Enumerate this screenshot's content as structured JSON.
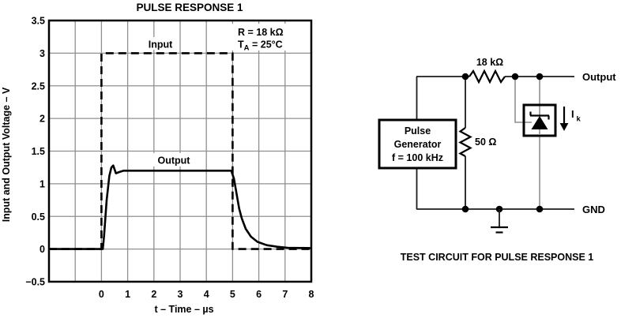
{
  "figure": {
    "chart": {
      "title": "PULSE RESPONSE 1",
      "x_axis_label": "t – Time – µs",
      "y_axis_label": "Input and Output Voltage – V",
      "condition_line1": "R = 18 kΩ",
      "condition_line2_pre": "T",
      "condition_line2_sub": "A",
      "condition_line2_post": " = 25°C",
      "input_label": "Input",
      "output_label": "Output"
    },
    "circuit": {
      "caption": "TEST CIRCUIT FOR PULSE RESPONSE 1",
      "generator_line1": "Pulse",
      "generator_line2": "Generator",
      "generator_line3": "f = 100 kHz",
      "series_resistor": "18 kΩ",
      "shunt_resistor": "50 Ω",
      "output_label": "Output",
      "gnd_label": "GND",
      "current_label_main": "I",
      "current_label_sub": "k"
    }
  },
  "chart_data": {
    "type": "line",
    "title": "PULSE RESPONSE 1",
    "xlabel": "t – Time – µs",
    "ylabel": "Input and Output Voltage – V",
    "xlim": [
      -2,
      8
    ],
    "ylim": [
      -0.5,
      3.5
    ],
    "x_ticks": [
      0,
      1,
      2,
      3,
      4,
      5,
      6,
      7,
      8
    ],
    "y_ticks": [
      3.5,
      3,
      2.5,
      2,
      1.5,
      1,
      0.5,
      0,
      -0.5
    ],
    "grid": true,
    "legend_position": "inline-annotations",
    "annotations": [
      "R = 18 kΩ",
      "TA = 25°C"
    ],
    "series": [
      {
        "name": "Input",
        "style": "dashed",
        "points": [
          [
            -2,
            0
          ],
          [
            0,
            0
          ],
          [
            0,
            3
          ],
          [
            5,
            3
          ],
          [
            5,
            0
          ],
          [
            8,
            0
          ]
        ]
      },
      {
        "name": "Output",
        "style": "solid",
        "points": [
          [
            -2,
            0
          ],
          [
            0.05,
            0
          ],
          [
            0.1,
            0.2
          ],
          [
            0.2,
            0.75
          ],
          [
            0.3,
            1.12
          ],
          [
            0.38,
            1.25
          ],
          [
            0.45,
            1.28
          ],
          [
            0.55,
            1.16
          ],
          [
            0.68,
            1.18
          ],
          [
            0.85,
            1.2
          ],
          [
            4.95,
            1.2
          ],
          [
            5.05,
            1.08
          ],
          [
            5.15,
            0.85
          ],
          [
            5.25,
            0.62
          ],
          [
            5.35,
            0.47
          ],
          [
            5.5,
            0.31
          ],
          [
            5.7,
            0.19
          ],
          [
            5.95,
            0.11
          ],
          [
            6.3,
            0.06
          ],
          [
            6.7,
            0.035
          ],
          [
            7.1,
            0.02
          ],
          [
            8,
            0.015
          ]
        ]
      }
    ]
  },
  "colors": {
    "foreground": "#000000",
    "grid": "#8f8f8f",
    "wire_gray": "#8f8f8f",
    "background": "#ffffff"
  }
}
